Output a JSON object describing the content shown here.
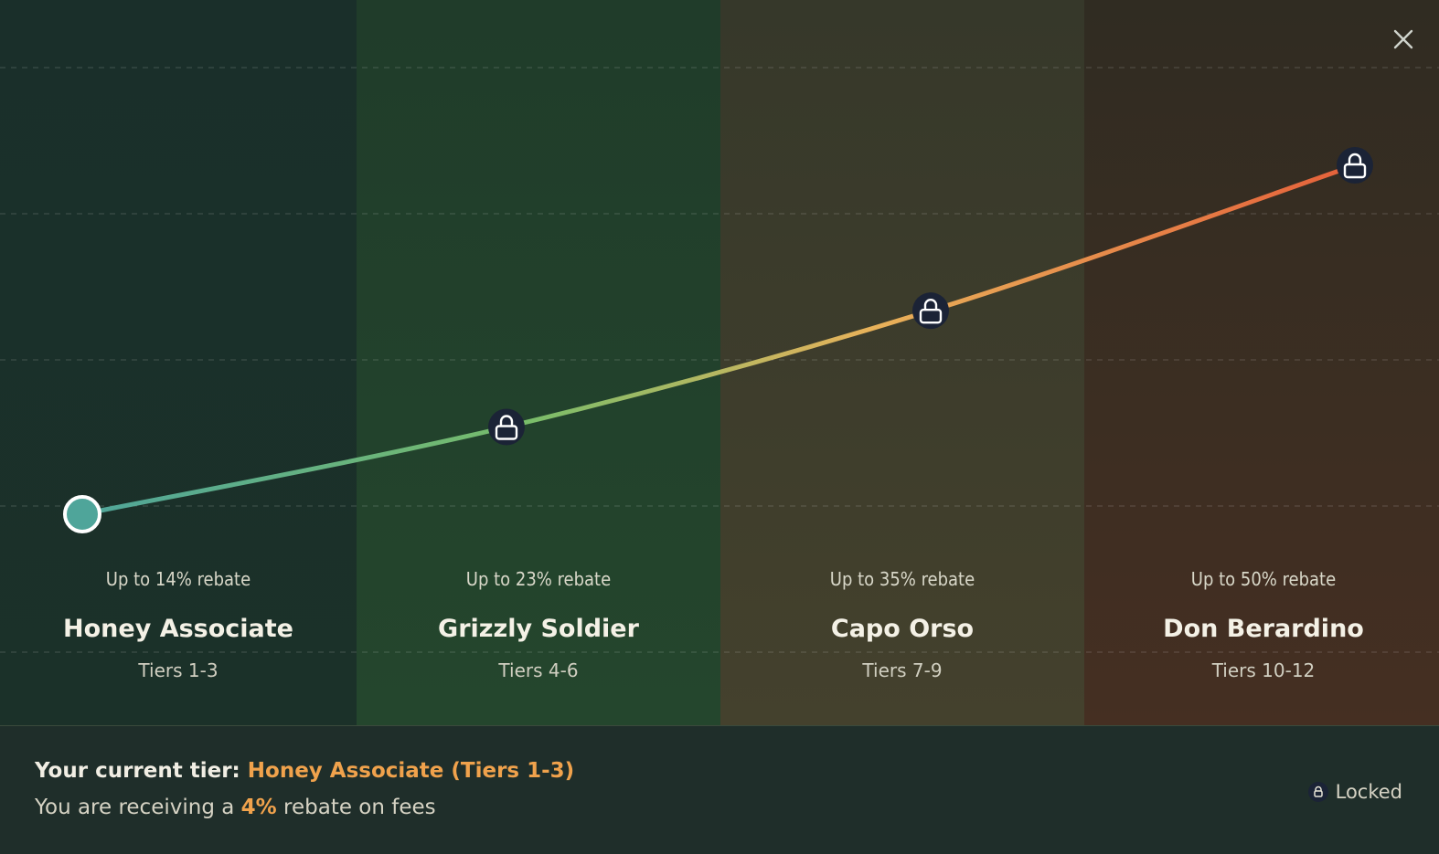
{
  "tiers": [
    {
      "rebate": "Up to 14% rebate",
      "name": "Honey Associate",
      "range": "Tiers 1-3",
      "status": "current"
    },
    {
      "rebate": "Up to 23% rebate",
      "name": "Grizzly Soldier",
      "range": "Tiers 4-6",
      "status": "locked"
    },
    {
      "rebate": "Up to 35% rebate",
      "name": "Capo Orso",
      "range": "Tiers 7-9",
      "status": "locked"
    },
    {
      "rebate": "Up to 50% rebate",
      "name": "Don Berardino",
      "range": "Tiers 10-12",
      "status": "locked"
    }
  ],
  "chart_data": {
    "type": "line",
    "categories": [
      "Honey Associate",
      "Grizzly Soldier",
      "Capo Orso",
      "Don Berardino"
    ],
    "values": [
      14,
      23,
      35,
      50
    ],
    "ylim": [
      0,
      60
    ],
    "grid": true
  },
  "footer": {
    "current_tier_label": "Your current tier: ",
    "current_tier_value": "Honey Associate (Tiers 1-3)",
    "receiving_prefix": "You are receiving a ",
    "receiving_value": "4%",
    "receiving_suffix": " rebate on fees",
    "locked_label": "Locked"
  },
  "icons": {
    "close": "close-icon",
    "lock": "lock-icon"
  },
  "colors": {
    "accent": "#f0a24c",
    "line_start": "#4fa59a",
    "line_mid": "#e8b25a",
    "line_end": "#e5603a",
    "marker_fill": "#1b2336"
  }
}
